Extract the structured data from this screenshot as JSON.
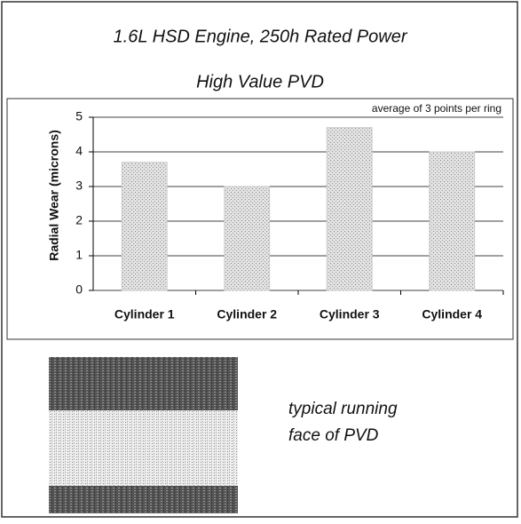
{
  "chart_data": {
    "type": "bar",
    "title": "1.6L HSD Engine, 250h Rated Power",
    "subtitle": "High Value PVD",
    "annotation": "average of 3 points per ring",
    "y_label": "Radial Wear (microns)",
    "categories": [
      "Cylinder 1",
      "Cylinder 2",
      "Cylinder 3",
      "Cylinder 4"
    ],
    "values": [
      3.7,
      3.0,
      4.7,
      4.0
    ],
    "color": "#c9c9c9",
    "ylim": [
      0,
      5
    ],
    "yticks": [
      0,
      1,
      2,
      3,
      4,
      5
    ],
    "grid": true
  },
  "caption": [
    "typical running",
    "face of PVD"
  ]
}
